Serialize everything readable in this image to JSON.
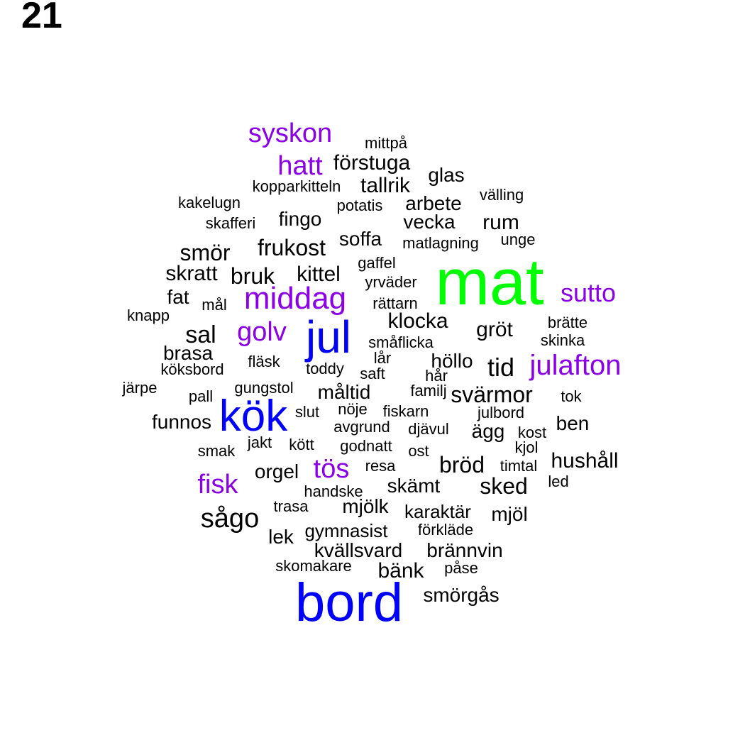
{
  "page_number": "21",
  "colors": {
    "black": "#000000",
    "purple": "#8B00E6",
    "blue": "#0000FF",
    "green": "#00FF00"
  },
  "words": [
    {
      "text": "mat",
      "color": "green",
      "weight": 7
    },
    {
      "text": "bord",
      "color": "blue",
      "weight": 6
    },
    {
      "text": "kök",
      "color": "blue",
      "weight": 5
    },
    {
      "text": "jul",
      "color": "blue",
      "weight": 5
    },
    {
      "text": "middag",
      "color": "purple",
      "weight": 4
    },
    {
      "text": "syskon",
      "color": "purple",
      "weight": 3
    },
    {
      "text": "hatt",
      "color": "purple",
      "weight": 3
    },
    {
      "text": "golv",
      "color": "purple",
      "weight": 3
    },
    {
      "text": "julafton",
      "color": "purple",
      "weight": 3
    },
    {
      "text": "sutto",
      "color": "purple",
      "weight": 3
    },
    {
      "text": "fisk",
      "color": "purple",
      "weight": 3
    },
    {
      "text": "tös",
      "color": "purple",
      "weight": 3
    },
    {
      "text": "sågo",
      "color": "black",
      "weight": 3
    },
    {
      "text": "sal",
      "color": "black",
      "weight": 3
    },
    {
      "text": "tid",
      "color": "black",
      "weight": 3
    },
    {
      "text": "förstuga",
      "color": "black",
      "weight": 2
    },
    {
      "text": "tallrik",
      "color": "black",
      "weight": 2
    },
    {
      "text": "glas",
      "color": "black",
      "weight": 2
    },
    {
      "text": "arbete",
      "color": "black",
      "weight": 2
    },
    {
      "text": "fingo",
      "color": "black",
      "weight": 2
    },
    {
      "text": "vecka",
      "color": "black",
      "weight": 2
    },
    {
      "text": "rum",
      "color": "black",
      "weight": 2
    },
    {
      "text": "soffa",
      "color": "black",
      "weight": 2
    },
    {
      "text": "smör",
      "color": "black",
      "weight": 2
    },
    {
      "text": "frukost",
      "color": "black",
      "weight": 2
    },
    {
      "text": "skratt",
      "color": "black",
      "weight": 2
    },
    {
      "text": "bruk",
      "color": "black",
      "weight": 2
    },
    {
      "text": "kittel",
      "color": "black",
      "weight": 2
    },
    {
      "text": "fat",
      "color": "black",
      "weight": 2
    },
    {
      "text": "klocka",
      "color": "black",
      "weight": 2
    },
    {
      "text": "gröt",
      "color": "black",
      "weight": 2
    },
    {
      "text": "brasa",
      "color": "black",
      "weight": 2
    },
    {
      "text": "höllo",
      "color": "black",
      "weight": 2
    },
    {
      "text": "måltid",
      "color": "black",
      "weight": 2
    },
    {
      "text": "svärmor",
      "color": "black",
      "weight": 2
    },
    {
      "text": "funnos",
      "color": "black",
      "weight": 2
    },
    {
      "text": "ben",
      "color": "black",
      "weight": 2
    },
    {
      "text": "ägg",
      "color": "black",
      "weight": 2
    },
    {
      "text": "bröd",
      "color": "black",
      "weight": 2
    },
    {
      "text": "hushåll",
      "color": "black",
      "weight": 2
    },
    {
      "text": "orgel",
      "color": "black",
      "weight": 2
    },
    {
      "text": "sked",
      "color": "black",
      "weight": 2
    },
    {
      "text": "skämt",
      "color": "black",
      "weight": 2
    },
    {
      "text": "mjölk",
      "color": "black",
      "weight": 2
    },
    {
      "text": "karaktär",
      "color": "black",
      "weight": 2
    },
    {
      "text": "mjöl",
      "color": "black",
      "weight": 2
    },
    {
      "text": "lek",
      "color": "black",
      "weight": 2
    },
    {
      "text": "gymnasist",
      "color": "black",
      "weight": 2
    },
    {
      "text": "kvällsvard",
      "color": "black",
      "weight": 2
    },
    {
      "text": "brännvin",
      "color": "black",
      "weight": 2
    },
    {
      "text": "bänk",
      "color": "black",
      "weight": 2
    },
    {
      "text": "smörgås",
      "color": "black",
      "weight": 2
    },
    {
      "text": "mittpå",
      "color": "black",
      "weight": 1
    },
    {
      "text": "kopparkitteln",
      "color": "black",
      "weight": 1
    },
    {
      "text": "välling",
      "color": "black",
      "weight": 1
    },
    {
      "text": "kakelugn",
      "color": "black",
      "weight": 1
    },
    {
      "text": "potatis",
      "color": "black",
      "weight": 1
    },
    {
      "text": "skafferi",
      "color": "black",
      "weight": 1
    },
    {
      "text": "matlagning",
      "color": "black",
      "weight": 1
    },
    {
      "text": "unge",
      "color": "black",
      "weight": 1
    },
    {
      "text": "gaffel",
      "color": "black",
      "weight": 1
    },
    {
      "text": "yrväder",
      "color": "black",
      "weight": 1
    },
    {
      "text": "mål",
      "color": "black",
      "weight": 1
    },
    {
      "text": "rättarn",
      "color": "black",
      "weight": 1
    },
    {
      "text": "knapp",
      "color": "black",
      "weight": 1
    },
    {
      "text": "brätte",
      "color": "black",
      "weight": 1
    },
    {
      "text": "skinka",
      "color": "black",
      "weight": 1
    },
    {
      "text": "småflicka",
      "color": "black",
      "weight": 1
    },
    {
      "text": "lår",
      "color": "black",
      "weight": 1
    },
    {
      "text": "fläsk",
      "color": "black",
      "weight": 1
    },
    {
      "text": "köksbord",
      "color": "black",
      "weight": 1
    },
    {
      "text": "toddy",
      "color": "black",
      "weight": 1
    },
    {
      "text": "saft",
      "color": "black",
      "weight": 1
    },
    {
      "text": "hår",
      "color": "black",
      "weight": 1
    },
    {
      "text": "järpe",
      "color": "black",
      "weight": 1
    },
    {
      "text": "pall",
      "color": "black",
      "weight": 1
    },
    {
      "text": "gungstol",
      "color": "black",
      "weight": 1
    },
    {
      "text": "familj",
      "color": "black",
      "weight": 1
    },
    {
      "text": "tok",
      "color": "black",
      "weight": 1
    },
    {
      "text": "slut",
      "color": "black",
      "weight": 1
    },
    {
      "text": "nöje",
      "color": "black",
      "weight": 1
    },
    {
      "text": "fiskarn",
      "color": "black",
      "weight": 1
    },
    {
      "text": "julbord",
      "color": "black",
      "weight": 1
    },
    {
      "text": "avgrund",
      "color": "black",
      "weight": 1
    },
    {
      "text": "djävul",
      "color": "black",
      "weight": 1
    },
    {
      "text": "kost",
      "color": "black",
      "weight": 1
    },
    {
      "text": "smak",
      "color": "black",
      "weight": 1
    },
    {
      "text": "jakt",
      "color": "black",
      "weight": 1
    },
    {
      "text": "kött",
      "color": "black",
      "weight": 1
    },
    {
      "text": "godnatt",
      "color": "black",
      "weight": 1
    },
    {
      "text": "ost",
      "color": "black",
      "weight": 1
    },
    {
      "text": "kjol",
      "color": "black",
      "weight": 1
    },
    {
      "text": "resa",
      "color": "black",
      "weight": 1
    },
    {
      "text": "timtal",
      "color": "black",
      "weight": 1
    },
    {
      "text": "led",
      "color": "black",
      "weight": 1
    },
    {
      "text": "handske",
      "color": "black",
      "weight": 1
    },
    {
      "text": "trasa",
      "color": "black",
      "weight": 1
    },
    {
      "text": "förkläde",
      "color": "black",
      "weight": 1
    },
    {
      "text": "skomakare",
      "color": "black",
      "weight": 1
    },
    {
      "text": "påse",
      "color": "black",
      "weight": 1
    }
  ]
}
